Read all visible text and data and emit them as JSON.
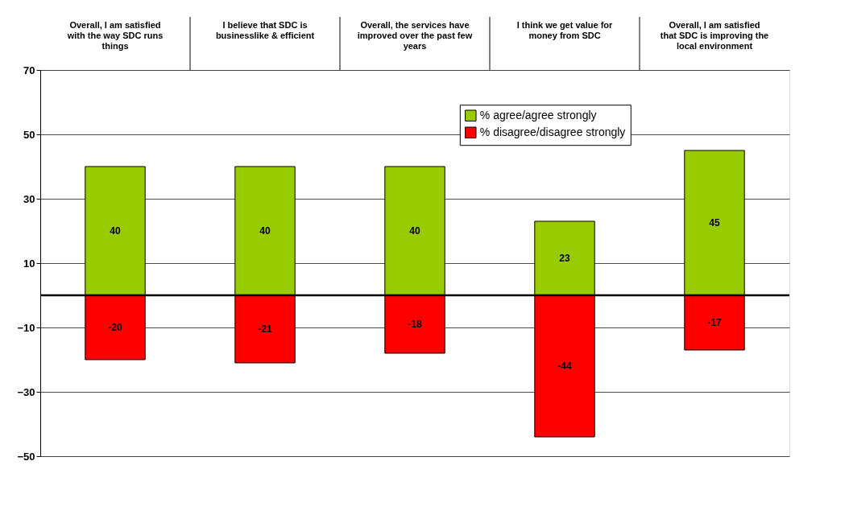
{
  "chart_data": {
    "type": "bar",
    "stacked": true,
    "categories": [
      "Overall, I am satisfied with the way SDC runs things",
      "I believe that SDC is businesslike & efficient",
      "Overall, the services have improved over the past few years",
      "I think we get value for money from SDC",
      "Overall, I am satisfied that SDC is improving the local environment"
    ],
    "series": [
      {
        "name": "% agree/agree strongly",
        "color": "#99cc00",
        "values": [
          40,
          40,
          40,
          23,
          45
        ]
      },
      {
        "name": "% disagree/disagree strongly",
        "color": "#ff0000",
        "values": [
          -20,
          -21,
          -18,
          -44,
          -17
        ]
      }
    ],
    "ylim": [
      -50,
      70
    ],
    "yticks": [
      -50,
      -30,
      -10,
      10,
      30,
      50,
      70
    ],
    "grid": "y",
    "legend": "top right",
    "data_labels": true,
    "ref_lines": [
      {
        "axis": "y",
        "value": 0
      }
    ]
  }
}
